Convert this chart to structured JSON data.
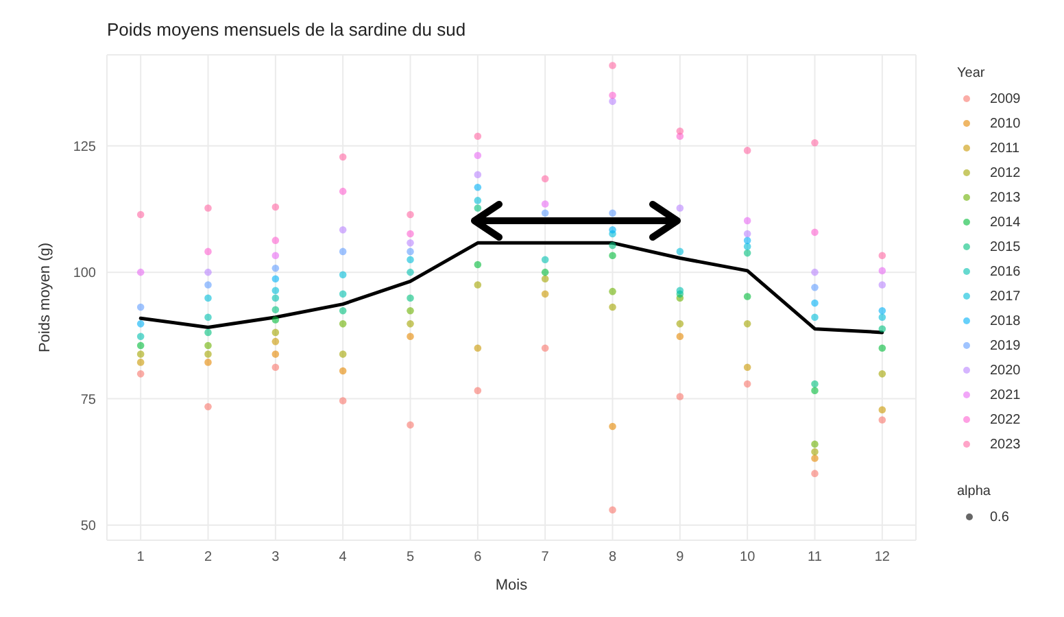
{
  "chart_data": {
    "type": "scatter",
    "title": "Poids moyens mensuels de la sardine du sud",
    "xlabel": "Mois",
    "ylabel": "Poids moyen (g)",
    "legend_title": "Year",
    "legend": "right",
    "grid": true,
    "marker": "circle",
    "x": [
      1,
      2,
      3,
      4,
      5,
      6,
      7,
      8,
      9,
      10,
      11,
      12
    ],
    "xlim": [
      0.5,
      12.5
    ],
    "xticks": [
      1,
      2,
      3,
      4,
      5,
      6,
      7,
      8,
      9,
      10,
      11,
      12
    ],
    "ylim": [
      47,
      143
    ],
    "yticks": [
      50,
      75,
      100,
      125
    ],
    "annotations": [
      "alpha",
      "0.6"
    ],
    "series": [
      {
        "name": "2009",
        "color": "#f8766d",
        "values": [
          79.9,
          73.4,
          81.2,
          74.6,
          69.8,
          76.6,
          85,
          53,
          75.4,
          77.9,
          60.2,
          70.8
        ]
      },
      {
        "name": "2010",
        "color": "#e58700",
        "values": [
          null,
          82.2,
          83.8,
          80.5,
          87.3,
          null,
          null,
          69.5,
          87.3,
          null,
          63.2,
          null
        ]
      },
      {
        "name": "2011",
        "color": "#c99800",
        "values": [
          82.2,
          null,
          86.3,
          null,
          null,
          85,
          95.7,
          null,
          null,
          81.2,
          null,
          72.8
        ]
      },
      {
        "name": "2012",
        "color": "#a3a500",
        "values": [
          83.8,
          83.8,
          88.1,
          83.8,
          89.8,
          97.5,
          98.7,
          93.1,
          89.8,
          89.8,
          64.5,
          79.9
        ]
      },
      {
        "name": "2013",
        "color": "#6bb100",
        "values": [
          null,
          85.5,
          null,
          89.8,
          92.4,
          null,
          null,
          96.2,
          94.9,
          null,
          66,
          null
        ]
      },
      {
        "name": "2014",
        "color": "#00ba38",
        "values": [
          85.5,
          null,
          90.6,
          null,
          null,
          101.5,
          100,
          103.3,
          null,
          95.2,
          76.6,
          85
        ]
      },
      {
        "name": "2015",
        "color": "#00bf7d",
        "values": [
          null,
          88.1,
          92.6,
          92.4,
          94.9,
          112.7,
          null,
          105.3,
          95.7,
          103.8,
          77.9,
          88.8
        ]
      },
      {
        "name": "2016",
        "color": "#00c0af",
        "values": [
          87.3,
          91.1,
          94.9,
          95.7,
          100,
          null,
          102.5,
          null,
          96.4,
          null,
          null,
          null
        ]
      },
      {
        "name": "2017",
        "color": "#00bcd8",
        "values": [
          null,
          94.9,
          96.4,
          99.5,
          102.5,
          114.2,
          null,
          107.6,
          104.1,
          105.1,
          91.1,
          91.1
        ]
      },
      {
        "name": "2018",
        "color": "#00b0f6",
        "values": [
          89.8,
          null,
          98.7,
          null,
          null,
          116.8,
          null,
          108.4,
          null,
          106.3,
          93.9,
          92.4
        ]
      },
      {
        "name": "2019",
        "color": "#619cff",
        "values": [
          93.1,
          97.5,
          100.8,
          104.1,
          104.1,
          null,
          111.7,
          111.7,
          null,
          null,
          97,
          null
        ]
      },
      {
        "name": "2020",
        "color": "#b983ff",
        "values": [
          null,
          100,
          null,
          108.4,
          105.8,
          119.3,
          null,
          133.8,
          112.7,
          107.6,
          100,
          97.5
        ]
      },
      {
        "name": "2021",
        "color": "#e76bf3",
        "values": [
          100,
          null,
          103.3,
          null,
          null,
          123.1,
          113.5,
          null,
          null,
          110.2,
          null,
          100.3
        ]
      },
      {
        "name": "2022",
        "color": "#fd61d1",
        "values": [
          null,
          104.1,
          106.3,
          116,
          107.6,
          null,
          null,
          135,
          126.9,
          null,
          107.9,
          null
        ]
      },
      {
        "name": "2023",
        "color": "#ff67a4",
        "values": [
          111.4,
          112.7,
          112.9,
          122.8,
          111.4,
          126.9,
          118.5,
          140.9,
          127.9,
          124.1,
          125.6,
          103.3
        ]
      },
      {
        "type": "line",
        "color": "#000000",
        "marker": "none",
        "line_style": "solid",
        "values": [
          90.9,
          89.1,
          91.1,
          93.7,
          98.2,
          105.8,
          105.8,
          105.8,
          102.8,
          100.3,
          88.8,
          88.1
        ]
      }
    ]
  }
}
